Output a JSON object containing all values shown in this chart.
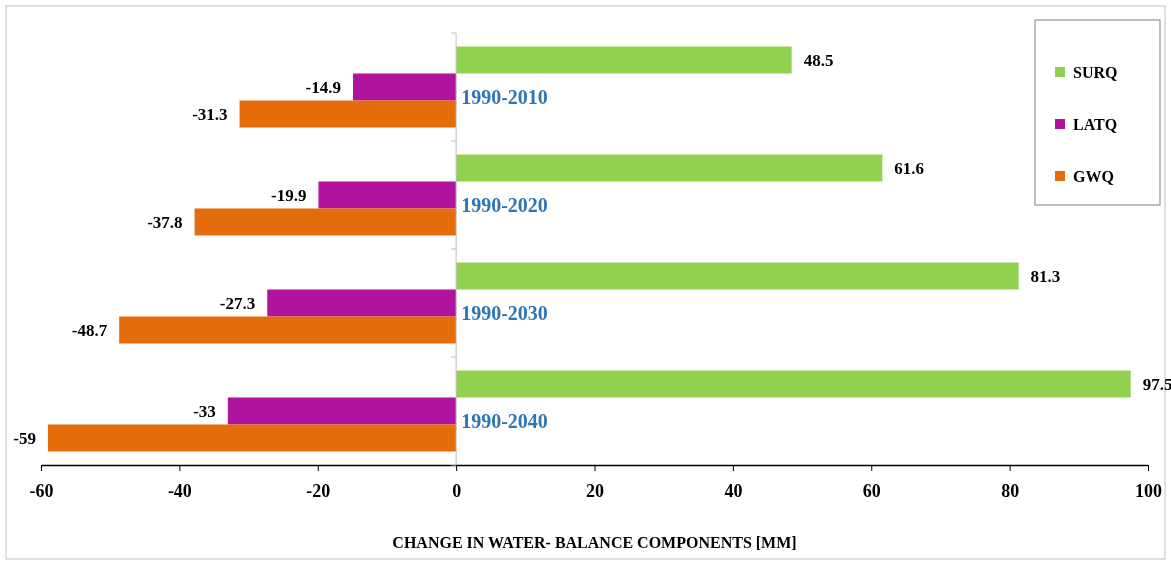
{
  "chart_data": {
    "type": "bar",
    "orientation": "horizontal",
    "xlabel": "CHANGE IN WATER- BALANCE COMPONENTS [MM]",
    "categories": [
      "1990-2010",
      "1990-2020",
      "1990-2030",
      "1990-2040"
    ],
    "series": [
      {
        "name": "SURQ",
        "color": "#92d050",
        "values": [
          48.5,
          61.6,
          81.3,
          97.5
        ]
      },
      {
        "name": "LATQ",
        "color": "#b0139e",
        "values": [
          -14.9,
          -19.9,
          -27.3,
          -33
        ]
      },
      {
        "name": "GWQ",
        "color": "#e46c0a",
        "values": [
          -31.3,
          -37.8,
          -48.7,
          -59
        ]
      }
    ],
    "xlim": [
      -60,
      100
    ],
    "xticks": [
      -60,
      -40,
      -20,
      0,
      20,
      40,
      60,
      80,
      100
    ],
    "data_labels": true,
    "legend": "top right",
    "grid": false
  }
}
